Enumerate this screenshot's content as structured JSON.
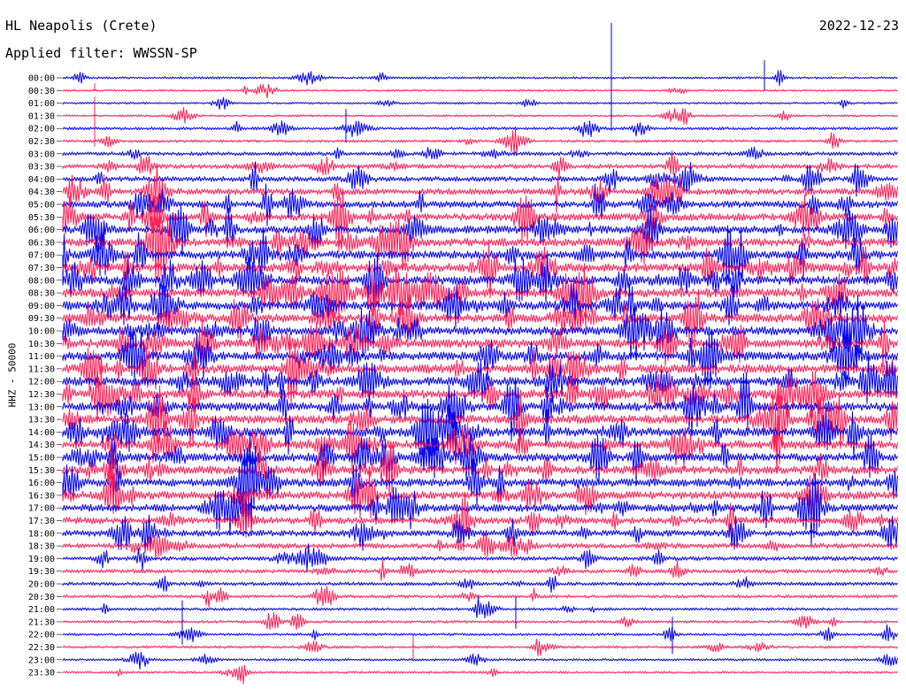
{
  "header": {
    "station": "HL Neapolis (Crete)",
    "filter": "Applied filter: WWSSN-SP",
    "date": "2022-12-23",
    "channel": "HHZ - 50000"
  },
  "chart_data": {
    "type": "line",
    "title": "HL Neapolis (Crete)",
    "subtitle": "Applied filter: WWSSN-SP",
    "ylabel": "HHZ - 50000",
    "colors": {
      "even_rows": "#0000ee",
      "odd_rows": "#ff1f55"
    },
    "rows": [
      "00:00",
      "00:30",
      "01:00",
      "01:30",
      "02:00",
      "02:30",
      "03:00",
      "03:30",
      "04:00",
      "04:30",
      "05:00",
      "05:30",
      "06:00",
      "06:30",
      "07:00",
      "07:30",
      "08:00",
      "08:30",
      "09:00",
      "09:30",
      "10:00",
      "10:30",
      "11:00",
      "11:30",
      "12:00",
      "12:30",
      "13:00",
      "13:30",
      "14:00",
      "14:30",
      "15:00",
      "15:30",
      "16:00",
      "16:30",
      "17:00",
      "17:30",
      "18:00",
      "18:30",
      "19:00",
      "19:30",
      "20:00",
      "20:30",
      "21:00",
      "21:30",
      "22:00",
      "22:30",
      "23:00",
      "23:30"
    ],
    "activity": [
      0.6,
      0.4,
      0.5,
      0.5,
      1.0,
      0.9,
      1.6,
      2.0,
      2.4,
      3.0,
      3.4,
      3.8,
      4.0,
      4.2,
      4.4,
      4.6,
      4.6,
      4.6,
      4.6,
      4.6,
      4.6,
      4.6,
      4.6,
      4.6,
      4.6,
      4.6,
      4.6,
      4.6,
      4.6,
      4.4,
      4.4,
      4.4,
      4.2,
      4.0,
      3.8,
      3.4,
      3.0,
      2.4,
      1.8,
      1.6,
      1.4,
      1.2,
      1.0,
      0.9,
      0.8,
      0.8,
      0.7,
      0.6
    ]
  }
}
